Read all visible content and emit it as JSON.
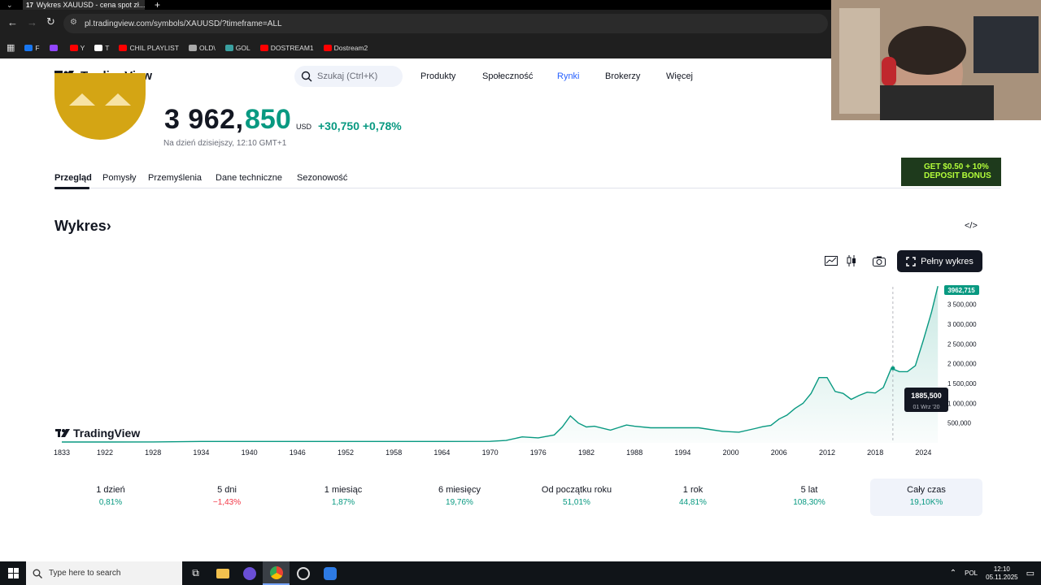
{
  "browser": {
    "tab_title": "Wykres XAUUSD - cena spot zł...",
    "url": "pl.tradingview.com/symbols/XAUUSD/?timeframe=ALL",
    "bookmarks": [
      {
        "label": "F",
        "color": "#1877f2"
      },
      {
        "label": "",
        "color": "#9146ff"
      },
      {
        "label": "Y",
        "color": "#ff0000"
      },
      {
        "label": "T",
        "color": "#ffffff"
      },
      {
        "label": "CHIL PLAYLIST",
        "color": "#ff0000"
      },
      {
        "label": "OLD\\",
        "color": "#aaaaaa"
      },
      {
        "label": "GOL",
        "color": "#3aa0a0"
      },
      {
        "label": "DOSTREAM1",
        "color": "#ff0000"
      },
      {
        "label": "Dostream2",
        "color": "#ff0000"
      }
    ]
  },
  "header": {
    "logo": "TradingView",
    "search_placeholder": "Szukaj (Ctrl+K)",
    "nav": [
      "Produkty",
      "Społeczność",
      "Rynki",
      "Brokerzy",
      "Więcej"
    ],
    "active_nav": "Rynki"
  },
  "symbol": {
    "price_int": "3 962,",
    "price_dec": "850",
    "currency": "USD",
    "change": "+30,750 +0,78%",
    "as_of": "Na dzień dzisiejszy, 12:10 GMT+1"
  },
  "tabs": [
    "Przegląd",
    "Pomysły",
    "Przemyślenia",
    "Dane techniczne",
    "Sezonowość"
  ],
  "ad": {
    "line1": "GET $0.50 + 10%",
    "line2": "DEPOSIT BONUS"
  },
  "chart_section": {
    "title": "Wykres",
    "full_chart_label": "Pełny wykres",
    "watermark": "TradingView",
    "current_price_label": "3962,715",
    "crosshair_value": "1885,500",
    "crosshair_date": "01 Wrz '20"
  },
  "chart_data": {
    "type": "area",
    "x_ticks": [
      "1833",
      "1922",
      "1928",
      "1934",
      "1940",
      "1946",
      "1952",
      "1958",
      "1964",
      "1970",
      "1976",
      "1982",
      "1988",
      "1994",
      "2000",
      "2006",
      "2012",
      "2018",
      "2024"
    ],
    "y_ticks": [
      "3 500,000",
      "3 000,000",
      "2 500,000",
      "2 000,000",
      "1 500,000",
      "1 000,000",
      "500,000"
    ],
    "ylim": [
      0,
      4000
    ],
    "color": "#089981",
    "series": [
      {
        "x": [
          1833,
          1900,
          1922,
          1928,
          1934,
          1940,
          1946,
          1952,
          1958,
          1964,
          1970,
          1972,
          1974,
          1976,
          1978,
          1979,
          1980,
          1981,
          1982,
          1983,
          1985,
          1987,
          1988,
          1990,
          1993,
          1996,
          1999,
          2001,
          2003,
          2004,
          2005,
          2006,
          2007,
          2008,
          2009,
          2010,
          2011,
          2012,
          2013,
          2014,
          2015,
          2016,
          2017,
          2018,
          2019,
          2020,
          2021,
          2022,
          2023,
          2024,
          2025,
          2025.8
        ],
        "y": [
          20,
          20,
          21,
          22,
          35,
          35,
          35,
          35,
          35,
          35,
          36,
          60,
          150,
          125,
          200,
          400,
          680,
          500,
          400,
          420,
          320,
          450,
          420,
          380,
          380,
          380,
          290,
          270,
          360,
          410,
          440,
          600,
          700,
          870,
          1000,
          1250,
          1650,
          1650,
          1300,
          1250,
          1100,
          1200,
          1280,
          1260,
          1400,
          1885,
          1800,
          1800,
          1950,
          2600,
          3300,
          3962.715
        ]
      }
    ]
  },
  "periods": [
    {
      "label": "1 dzień",
      "value": "0,81%",
      "dir": "up"
    },
    {
      "label": "5 dni",
      "value": "−1,43%",
      "dir": "down"
    },
    {
      "label": "1 miesiąc",
      "value": "1,87%",
      "dir": "up"
    },
    {
      "label": "6 miesięcy",
      "value": "19,76%",
      "dir": "up"
    },
    {
      "label": "Od początku roku",
      "value": "51,01%",
      "dir": "up"
    },
    {
      "label": "1 rok",
      "value": "44,81%",
      "dir": "up"
    },
    {
      "label": "5 lat",
      "value": "108,30%",
      "dir": "up"
    },
    {
      "label": "Cały czas",
      "value": "19,10K%",
      "dir": "up"
    }
  ],
  "selected_period": "Cały czas",
  "taskbar": {
    "search_placeholder": "Type here to search",
    "lang": "POL",
    "time": "12:10",
    "date": "05.11.2025"
  }
}
